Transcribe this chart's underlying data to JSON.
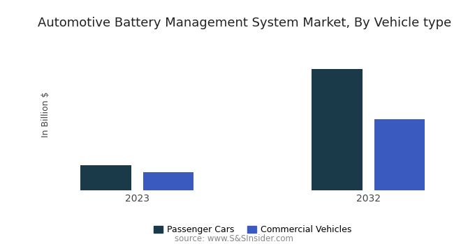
{
  "title": "Automotive Battery Management System Market, By Vehicle type",
  "ylabel": "In Billion $",
  "source": "source: www.S&SInsider.com",
  "categories": [
    "2023",
    "2032"
  ],
  "series": [
    {
      "name": "Passenger Cars",
      "color": "#1a3a4a",
      "values": [
        1.4,
        6.8
      ]
    },
    {
      "name": "Commercial Vehicles",
      "color": "#3b5abf",
      "values": [
        1.0,
        4.0
      ]
    }
  ],
  "bar_width": 0.22,
  "group_positions": [
    0.25,
    0.75
  ],
  "bar_gap": 0.05,
  "background_color": "#ffffff",
  "fig_background_color": "#ffffff",
  "ylim": [
    0,
    8.5
  ],
  "title_fontsize": 13,
  "ylabel_fontsize": 9,
  "tick_fontsize": 10,
  "legend_fontsize": 9,
  "source_fontsize": 8.5,
  "title_color": "#222222",
  "tick_color": "#444444",
  "source_color": "#888888"
}
